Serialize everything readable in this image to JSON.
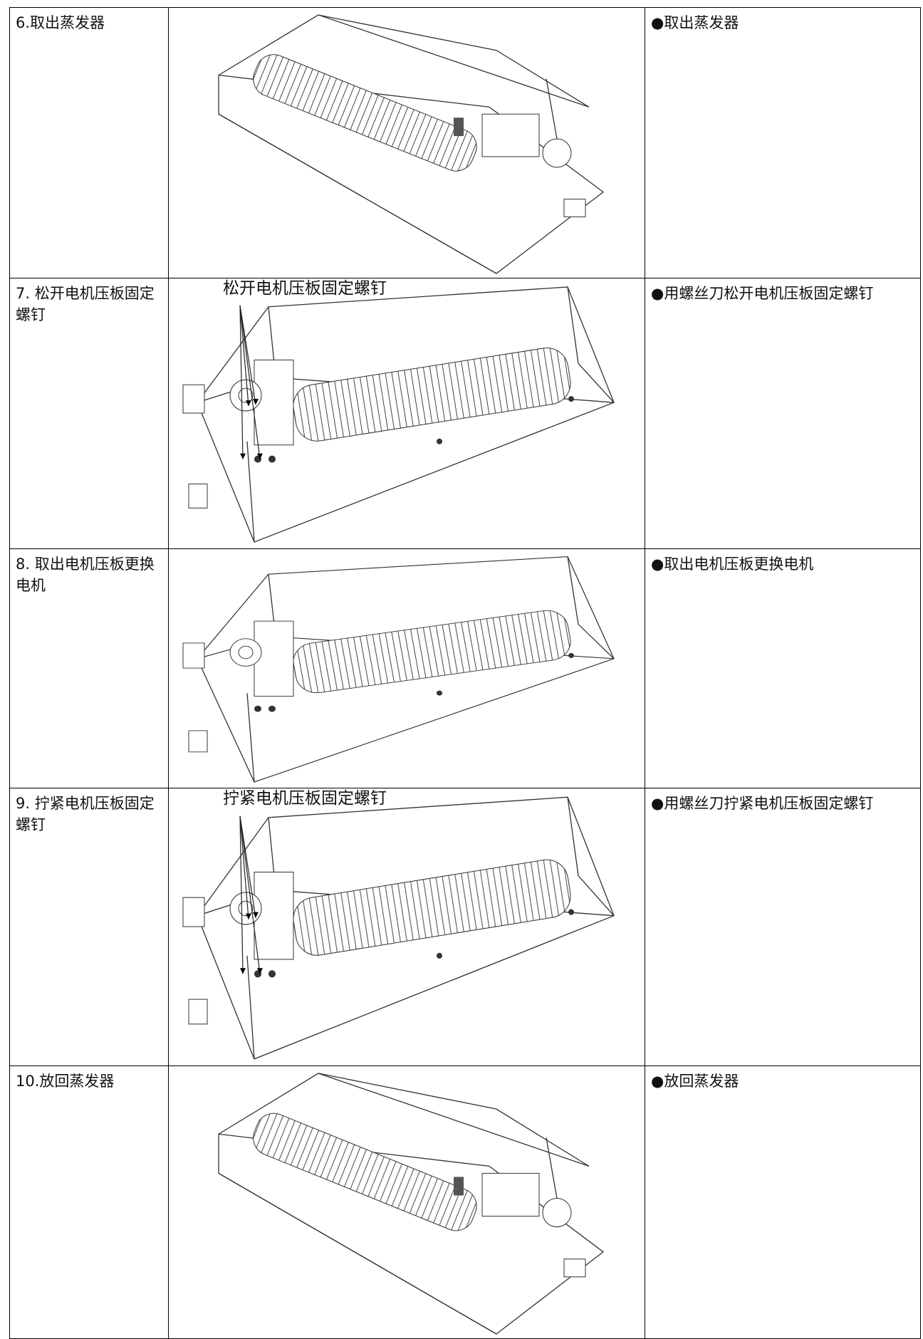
{
  "table": {
    "rows": [
      {
        "step": "6.取出蒸发器",
        "note": "●取出蒸发器"
      },
      {
        "step": "7. 松开电机压板固定螺钉",
        "callout": "松开电机压板固定螺钉",
        "note": "●用螺丝刀松开电机压板固定螺钉"
      },
      {
        "step": "8. 取出电机压板更换电机",
        "note": "●取出电机压板更换电机"
      },
      {
        "step": "9. 拧紧电机压板固定螺钉",
        "callout": "拧紧电机压板固定螺钉",
        "note": "●用螺丝刀拧紧电机压板固定螺钉"
      },
      {
        "step": "10.放回蒸发器",
        "note": "●放回蒸发器"
      }
    ]
  }
}
